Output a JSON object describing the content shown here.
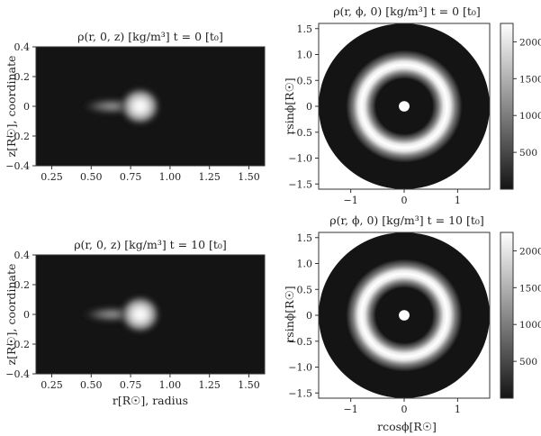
{
  "chart_data": [
    {
      "type": "heatmap",
      "id": "rz0",
      "title": "ρ(r, 0, z) [kg/m³]  t = 0 [t₀]",
      "xlabel": "",
      "ylabel": "z[R☉], coordinate",
      "xlim": [
        0.15,
        1.6
      ],
      "ylim": [
        -0.4,
        0.4
      ],
      "xticks": [
        "0.25",
        "0.50",
        "0.75",
        "1.00",
        "1.25",
        "1.50"
      ],
      "xtick_values": [
        0.25,
        0.5,
        0.75,
        1.0,
        1.25,
        1.5
      ],
      "yticks": [
        "−0.4",
        "−0.2",
        "0",
        "0.2",
        "0.4"
      ],
      "ytick_values": [
        -0.4,
        -0.2,
        0,
        0.2,
        0.4
      ],
      "peak": {
        "r": 0.8,
        "z": 0.0
      }
    },
    {
      "type": "heatmap",
      "id": "xy0",
      "title": "ρ(r, ϕ, 0) [kg/m³]  t = 0 [t₀]",
      "xlabel": "",
      "ylabel": "rsinϕ[R☉]",
      "xlim": [
        -1.6,
        1.6
      ],
      "ylim": [
        -1.6,
        1.6
      ],
      "xticks": [
        "−1",
        "0",
        "1"
      ],
      "xtick_values": [
        -1,
        0,
        1
      ],
      "yticks": [
        "−1.5",
        "−1.0",
        "−0.5",
        "0",
        "0.5",
        "1.0",
        "1.5"
      ],
      "ytick_values": [
        -1.5,
        -1.0,
        -0.5,
        0,
        0.5,
        1.0,
        1.5
      ],
      "ring_radius": 0.8,
      "inner_hole_radius": 0.1,
      "outer_radius": 1.6
    },
    {
      "type": "heatmap",
      "id": "rz10",
      "title": "ρ(r, 0, z) [kg/m³]  t = 10 [t₀]",
      "xlabel": "r[R☉], radius",
      "ylabel": "z[R☉], coordinate",
      "xlim": [
        0.15,
        1.6
      ],
      "ylim": [
        -0.4,
        0.4
      ],
      "xticks": [
        "0.25",
        "0.50",
        "0.75",
        "1.00",
        "1.25",
        "1.50"
      ],
      "xtick_values": [
        0.25,
        0.5,
        0.75,
        1.0,
        1.25,
        1.5
      ],
      "yticks": [
        "−0.4",
        "−0.2",
        "0",
        "0.2",
        "0.4"
      ],
      "ytick_values": [
        -0.4,
        -0.2,
        0,
        0.2,
        0.4
      ],
      "peak": {
        "r": 0.8,
        "z": 0.0
      }
    },
    {
      "type": "heatmap",
      "id": "xy10",
      "title": "ρ(r, ϕ, 0) [kg/m³]  t = 10 [t₀]",
      "xlabel": "rcosϕ[R☉]",
      "ylabel": "rsinϕ[R☉]",
      "xlim": [
        -1.6,
        1.6
      ],
      "ylim": [
        -1.6,
        1.6
      ],
      "xticks": [
        "−1",
        "0",
        "1"
      ],
      "xtick_values": [
        -1,
        0,
        1
      ],
      "yticks": [
        "−1.5",
        "−1.0",
        "−0.5",
        "0",
        "0.5",
        "1.0",
        "1.5"
      ],
      "ytick_values": [
        -1.5,
        -1.0,
        -0.5,
        0,
        0.5,
        1.0,
        1.5
      ],
      "ring_radius": 0.8,
      "inner_hole_radius": 0.1,
      "outer_radius": 1.6
    }
  ],
  "colorbar": {
    "min": 0,
    "max": 2250,
    "ticks": [
      "500",
      "1000",
      "1500",
      "2000"
    ],
    "tick_values": [
      500,
      1000,
      1500,
      2000
    ],
    "colormap": "gray"
  },
  "colors": {
    "background_low": "#141414",
    "peak_high": "#ffffff",
    "axis": "#333333"
  }
}
